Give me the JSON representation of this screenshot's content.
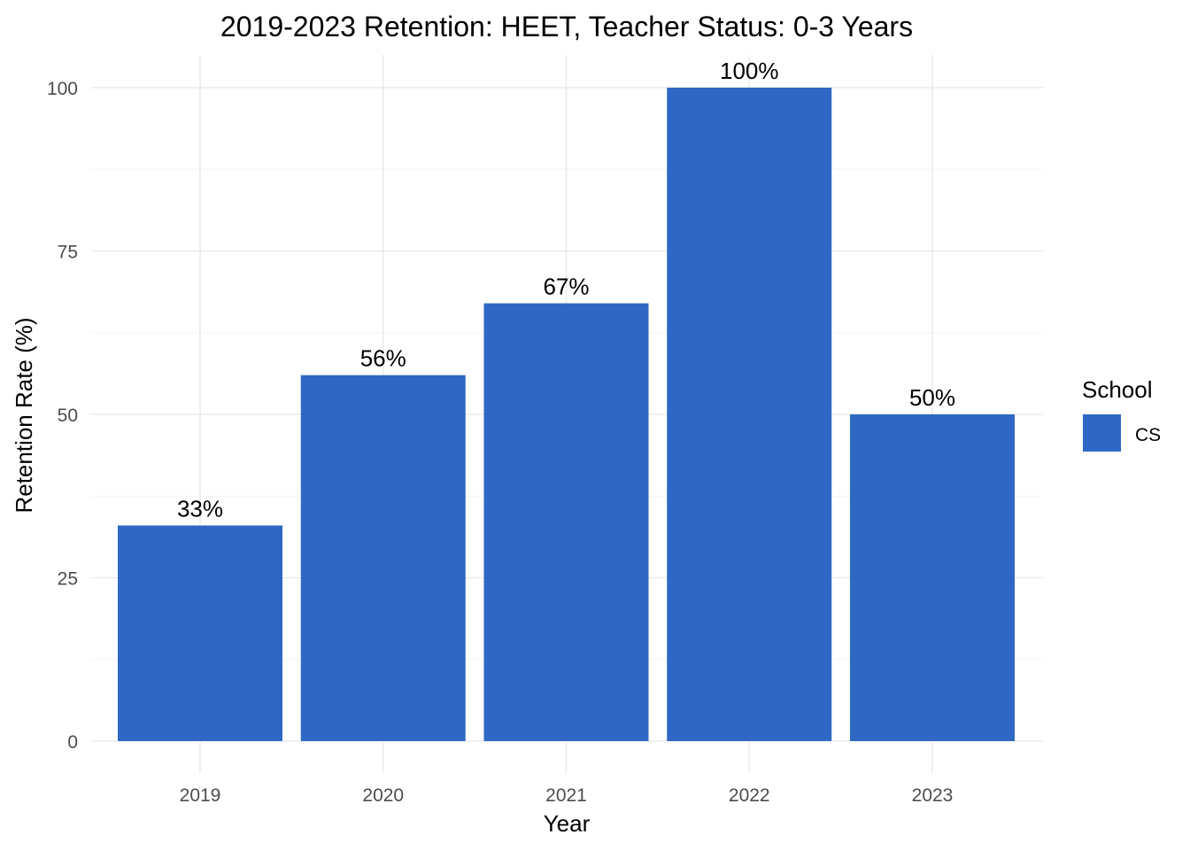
{
  "chart_data": {
    "type": "bar",
    "title": "2019-2023 Retention: HEET, Teacher Status: 0-3 Years",
    "xlabel": "Year",
    "ylabel": "Retention Rate (%)",
    "categories": [
      "2019",
      "2020",
      "2021",
      "2022",
      "2023"
    ],
    "series": [
      {
        "name": "CS",
        "values": [
          33,
          56,
          67,
          100,
          50
        ],
        "labels": [
          "33%",
          "56%",
          "67%",
          "100%",
          "50%"
        ],
        "color": "#2E68C4"
      }
    ],
    "ylim": [
      0,
      100
    ],
    "yticks": [
      0,
      25,
      50,
      75,
      100
    ],
    "ytick_labels": [
      "0",
      "25",
      "50",
      "75",
      "100"
    ],
    "grid": true,
    "legend": {
      "title": "School",
      "placement": "right"
    }
  }
}
